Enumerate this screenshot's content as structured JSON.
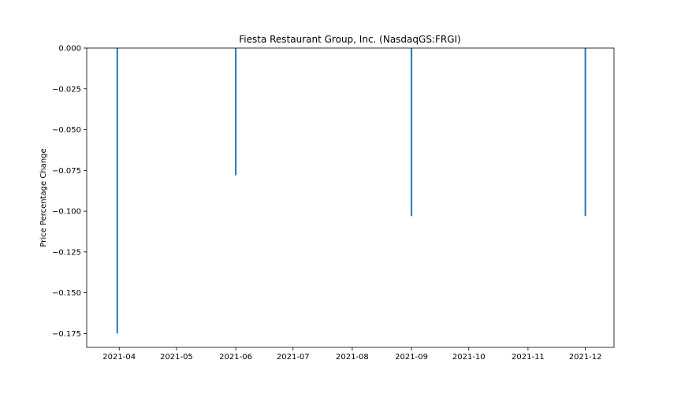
{
  "chart_data": {
    "type": "bar",
    "title": "Fiesta Restaurant Group, Inc. (NasdaqGS:FRGI)",
    "xlabel": "",
    "ylabel": "Price Percentage Change",
    "x_tick_labels": [
      "2021-04",
      "2021-05",
      "2021-06",
      "2021-07",
      "2021-08",
      "2021-09",
      "2021-10",
      "2021-11",
      "2021-12"
    ],
    "y_ticks": [
      0.0,
      -0.025,
      -0.05,
      -0.075,
      -0.1,
      -0.125,
      -0.15,
      -0.175
    ],
    "y_tick_labels": [
      "0.000",
      "−0.025",
      "−0.050",
      "−0.075",
      "−0.100",
      "−0.125",
      "−0.150",
      "−0.175"
    ],
    "xlim": [
      "2021-03-15",
      "2021-12-16"
    ],
    "ylim": [
      -0.1835,
      0.0
    ],
    "grid": false,
    "series": [
      {
        "color": "#1f77b4",
        "points": [
          {
            "x": "2021-03-31",
            "y": -0.175
          },
          {
            "x": "2021-06-01",
            "y": -0.078
          },
          {
            "x": "2021-09-01",
            "y": -0.103
          },
          {
            "x": "2021-12-01",
            "y": -0.103
          }
        ]
      }
    ]
  }
}
